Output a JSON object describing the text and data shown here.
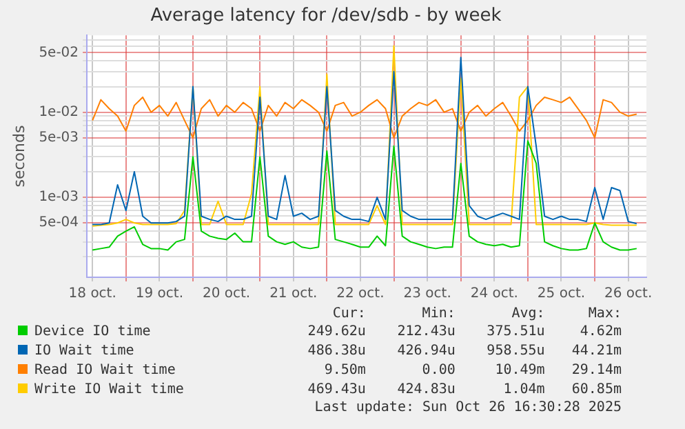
{
  "chart_data": {
    "type": "line",
    "title": "Average latency for /dev/sdb - by week",
    "ylabel": "seconds",
    "log": "y",
    "grid": true,
    "legend": "bottom",
    "marker": "none",
    "line_style": "solid",
    "x": [
      "2025-10-18T12:00",
      "2025-10-18T15:00",
      "2025-10-18T18:00",
      "2025-10-18T21:00",
      "2025-10-19T00:00",
      "2025-10-19T03:00",
      "2025-10-19T06:00",
      "2025-10-19T09:00",
      "2025-10-19T12:00",
      "2025-10-19T15:00",
      "2025-10-19T18:00",
      "2025-10-19T21:00",
      "2025-10-20T00:00",
      "2025-10-20T03:00",
      "2025-10-20T06:00",
      "2025-10-20T09:00",
      "2025-10-20T12:00",
      "2025-10-20T15:00",
      "2025-10-20T18:00",
      "2025-10-20T21:00",
      "2025-10-21T00:00",
      "2025-10-21T03:00",
      "2025-10-21T06:00",
      "2025-10-21T09:00",
      "2025-10-21T12:00",
      "2025-10-21T15:00",
      "2025-10-21T18:00",
      "2025-10-21T21:00",
      "2025-10-22T00:00",
      "2025-10-22T03:00",
      "2025-10-22T06:00",
      "2025-10-22T09:00",
      "2025-10-22T12:00",
      "2025-10-22T15:00",
      "2025-10-22T18:00",
      "2025-10-22T21:00",
      "2025-10-23T00:00",
      "2025-10-23T03:00",
      "2025-10-23T06:00",
      "2025-10-23T09:00",
      "2025-10-23T12:00",
      "2025-10-23T15:00",
      "2025-10-23T18:00",
      "2025-10-23T21:00",
      "2025-10-24T00:00",
      "2025-10-24T03:00",
      "2025-10-24T06:00",
      "2025-10-24T09:00",
      "2025-10-24T12:00",
      "2025-10-24T15:00",
      "2025-10-24T18:00",
      "2025-10-24T21:00",
      "2025-10-25T00:00",
      "2025-10-25T03:00",
      "2025-10-25T06:00",
      "2025-10-25T09:00",
      "2025-10-25T12:00",
      "2025-10-25T15:00",
      "2025-10-25T18:00",
      "2025-10-25T21:00",
      "2025-10-26T00:00",
      "2025-10-26T03:00",
      "2025-10-26T06:00",
      "2025-10-26T09:00",
      "2025-10-26T12:00",
      "2025-10-26T15:00"
    ],
    "xlim": [
      "2025-10-18T10:00",
      "2025-10-26T18:30"
    ],
    "xticks": [
      {
        "value": "2025-10-18T12:00",
        "label": "18 oct."
      },
      {
        "value": "2025-10-19T00:00",
        "label": null
      },
      {
        "value": "2025-10-19T12:00",
        "label": "19 oct."
      },
      {
        "value": "2025-10-20T00:00",
        "label": null
      },
      {
        "value": "2025-10-20T12:00",
        "label": "20 oct."
      },
      {
        "value": "2025-10-21T00:00",
        "label": null
      },
      {
        "value": "2025-10-21T12:00",
        "label": "21 oct."
      },
      {
        "value": "2025-10-22T00:00",
        "label": null
      },
      {
        "value": "2025-10-22T12:00",
        "label": "22 oct."
      },
      {
        "value": "2025-10-23T00:00",
        "label": null
      },
      {
        "value": "2025-10-23T12:00",
        "label": "23 oct."
      },
      {
        "value": "2025-10-24T00:00",
        "label": null
      },
      {
        "value": "2025-10-24T12:00",
        "label": "24 oct."
      },
      {
        "value": "2025-10-25T00:00",
        "label": null
      },
      {
        "value": "2025-10-25T12:00",
        "label": "25 oct."
      },
      {
        "value": "2025-10-26T00:00",
        "label": null
      },
      {
        "value": "2025-10-26T12:00",
        "label": "26 oct."
      }
    ],
    "ylim": [
      0.000115,
      0.08
    ],
    "yticks": [
      {
        "value": 0.0002,
        "label": null
      },
      {
        "value": 0.0003,
        "label": null
      },
      {
        "value": 0.0004,
        "label": null
      },
      {
        "value": 0.0005,
        "label": "5e-04"
      },
      {
        "value": 0.0006,
        "label": null
      },
      {
        "value": 0.0007,
        "label": null
      },
      {
        "value": 0.0008,
        "label": null
      },
      {
        "value": 0.0009,
        "label": null
      },
      {
        "value": 0.001,
        "label": "1e-03"
      },
      {
        "value": 0.002,
        "label": null
      },
      {
        "value": 0.003,
        "label": null
      },
      {
        "value": 0.004,
        "label": null
      },
      {
        "value": 0.005,
        "label": "5e-03"
      },
      {
        "value": 0.006,
        "label": null
      },
      {
        "value": 0.007,
        "label": null
      },
      {
        "value": 0.008,
        "label": null
      },
      {
        "value": 0.009,
        "label": null
      },
      {
        "value": 0.01,
        "label": "1e-02"
      },
      {
        "value": 0.02,
        "label": null
      },
      {
        "value": 0.03,
        "label": null
      },
      {
        "value": 0.04,
        "label": null
      },
      {
        "value": 0.05,
        "label": "5e-02"
      },
      {
        "value": 0.06,
        "label": null
      },
      {
        "value": 0.07,
        "label": null
      }
    ],
    "series": [
      {
        "name": "Device IO time",
        "color": "#00cc00",
        "values": [
          0.00024,
          0.00025,
          0.00026,
          0.00035,
          0.0004,
          0.00045,
          0.00028,
          0.00025,
          0.00025,
          0.00024,
          0.0003,
          0.00032,
          0.003,
          0.0004,
          0.00035,
          0.00033,
          0.00032,
          0.00038,
          0.0003,
          0.0003,
          0.003,
          0.00035,
          0.0003,
          0.00028,
          0.0003,
          0.00026,
          0.00025,
          0.00026,
          0.0035,
          0.00032,
          0.0003,
          0.00028,
          0.00026,
          0.00026,
          0.00035,
          0.00027,
          0.004,
          0.00035,
          0.0003,
          0.00028,
          0.00026,
          0.00025,
          0.00026,
          0.00026,
          0.0025,
          0.00035,
          0.0003,
          0.00028,
          0.00027,
          0.00028,
          0.00026,
          0.00027,
          0.0046,
          0.0025,
          0.0003,
          0.00027,
          0.00025,
          0.00024,
          0.00024,
          0.00025,
          0.0005,
          0.0003,
          0.00026,
          0.00024,
          0.00024,
          0.00025
        ]
      },
      {
        "name": "IO Wait time",
        "color": "#0066b3",
        "values": [
          0.00048,
          0.00048,
          0.0005,
          0.0014,
          0.0007,
          0.002,
          0.0006,
          0.0005,
          0.0005,
          0.0005,
          0.00052,
          0.0006,
          0.02,
          0.0006,
          0.00055,
          0.00052,
          0.0006,
          0.00055,
          0.00055,
          0.0006,
          0.015,
          0.0006,
          0.00055,
          0.0018,
          0.0006,
          0.00065,
          0.00055,
          0.0006,
          0.02,
          0.0007,
          0.0006,
          0.00055,
          0.00055,
          0.00052,
          0.001,
          0.00055,
          0.03,
          0.0007,
          0.0006,
          0.00055,
          0.00055,
          0.00055,
          0.00055,
          0.00055,
          0.044,
          0.0008,
          0.0006,
          0.00055,
          0.0006,
          0.00065,
          0.0006,
          0.00055,
          0.02,
          0.004,
          0.0006,
          0.00055,
          0.0006,
          0.00055,
          0.00055,
          0.00052,
          0.0013,
          0.00055,
          0.0013,
          0.0012,
          0.00052,
          0.00049
        ]
      },
      {
        "name": "Read IO Wait time",
        "color": "#ff7f00",
        "values": [
          0.008,
          0.014,
          0.011,
          0.009,
          0.006,
          0.012,
          0.015,
          0.01,
          0.012,
          0.009,
          0.013,
          0.008,
          0.005,
          0.011,
          0.014,
          0.009,
          0.012,
          0.01,
          0.013,
          0.011,
          0.006,
          0.012,
          0.009,
          0.013,
          0.011,
          0.014,
          0.012,
          0.01,
          0.006,
          0.012,
          0.013,
          0.009,
          0.01,
          0.012,
          0.014,
          0.011,
          0.005,
          0.009,
          0.011,
          0.013,
          0.012,
          0.014,
          0.01,
          0.011,
          0.006,
          0.01,
          0.012,
          0.009,
          0.011,
          0.013,
          0.009,
          0.006,
          0.008,
          0.012,
          0.015,
          0.014,
          0.013,
          0.015,
          0.011,
          0.008,
          0.005,
          0.014,
          0.013,
          0.01,
          0.009,
          0.0095
        ]
      },
      {
        "name": "Write IO Wait time",
        "color": "#ffcc00",
        "values": [
          0.00046,
          0.00047,
          0.00048,
          0.0005,
          0.00055,
          0.0005,
          0.00048,
          0.00048,
          0.00048,
          0.00048,
          0.00049,
          0.0007,
          0.02,
          0.00048,
          0.00048,
          0.0009,
          0.00048,
          0.00048,
          0.00048,
          0.0011,
          0.02,
          0.00048,
          0.00048,
          0.00048,
          0.00048,
          0.00048,
          0.00048,
          0.00048,
          0.028,
          0.00048,
          0.00048,
          0.00048,
          0.00048,
          0.00048,
          0.0008,
          0.00048,
          0.06,
          0.00048,
          0.00048,
          0.00048,
          0.00048,
          0.00048,
          0.00048,
          0.00048,
          0.025,
          0.00048,
          0.00048,
          0.00048,
          0.00048,
          0.00048,
          0.00048,
          0.015,
          0.02,
          0.00048,
          0.00048,
          0.00048,
          0.00048,
          0.00048,
          0.00048,
          0.00048,
          0.0005,
          0.00048,
          0.00047,
          0.00047,
          0.00047,
          0.00047
        ]
      }
    ],
    "annotations": [
      "Cur:",
      "Min:",
      "Avg:",
      "Max:",
      "249.62u",
      "212.43u",
      "375.51u",
      "4.62m",
      "486.38u",
      "426.94u",
      "958.55u",
      "44.21m",
      "9.50m",
      "0.00",
      "10.49m",
      "29.14m",
      "469.43u",
      "424.83u",
      "1.04m",
      "60.85m",
      "Last update: Sun Oct 26 16:30:28 2025"
    ]
  }
}
